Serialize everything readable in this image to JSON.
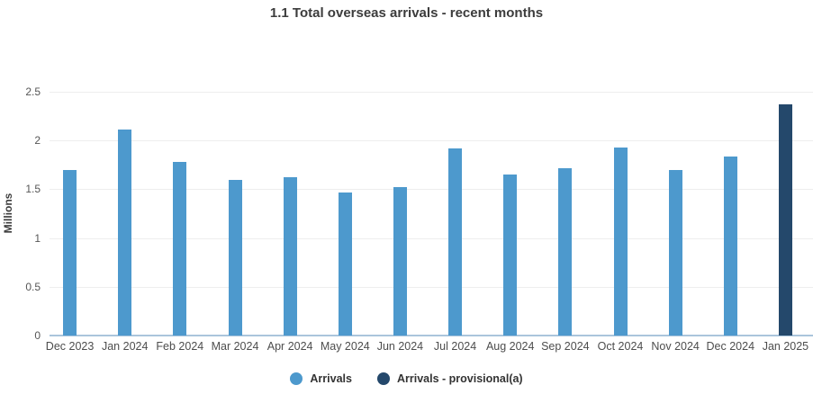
{
  "title": "1.1 Total overseas arrivals - recent months",
  "y_axis_label": "Millions",
  "legend": [
    {
      "label": "Arrivals",
      "color": "#4d99cd"
    },
    {
      "label": "Arrivals - provisional(a)",
      "color": "#24486b"
    }
  ],
  "colors": {
    "bar": "#4d99cd",
    "bar_provisional": "#24486b",
    "gridline": "#eeeeee",
    "axis_line": "#aac5dc",
    "title_text": "#3c3c3c",
    "tick_text": "#565656"
  },
  "chart_data": {
    "type": "bar",
    "title": "1.1 Total overseas arrivals - recent months",
    "xlabel": "",
    "ylabel": "Millions",
    "ylim": [
      0,
      2.5
    ],
    "yticks": [
      0,
      0.5,
      1,
      1.5,
      2,
      2.5
    ],
    "grid": true,
    "legend_position": "bottom",
    "categories": [
      "Dec 2023",
      "Jan 2024",
      "Feb 2024",
      "Mar 2024",
      "Apr 2024",
      "May 2024",
      "Jun 2024",
      "Jul 2024",
      "Aug 2024",
      "Sep 2024",
      "Oct 2024",
      "Nov 2024",
      "Dec 2024",
      "Jan 2025"
    ],
    "series": [
      {
        "name": "Arrivals",
        "values": [
          1.7,
          2.11,
          1.78,
          1.6,
          1.62,
          1.47,
          1.52,
          1.92,
          1.65,
          1.72,
          1.93,
          1.7,
          1.84,
          null
        ]
      },
      {
        "name": "Arrivals - provisional(a)",
        "values": [
          null,
          null,
          null,
          null,
          null,
          null,
          null,
          null,
          null,
          null,
          null,
          null,
          null,
          2.37
        ]
      }
    ]
  }
}
